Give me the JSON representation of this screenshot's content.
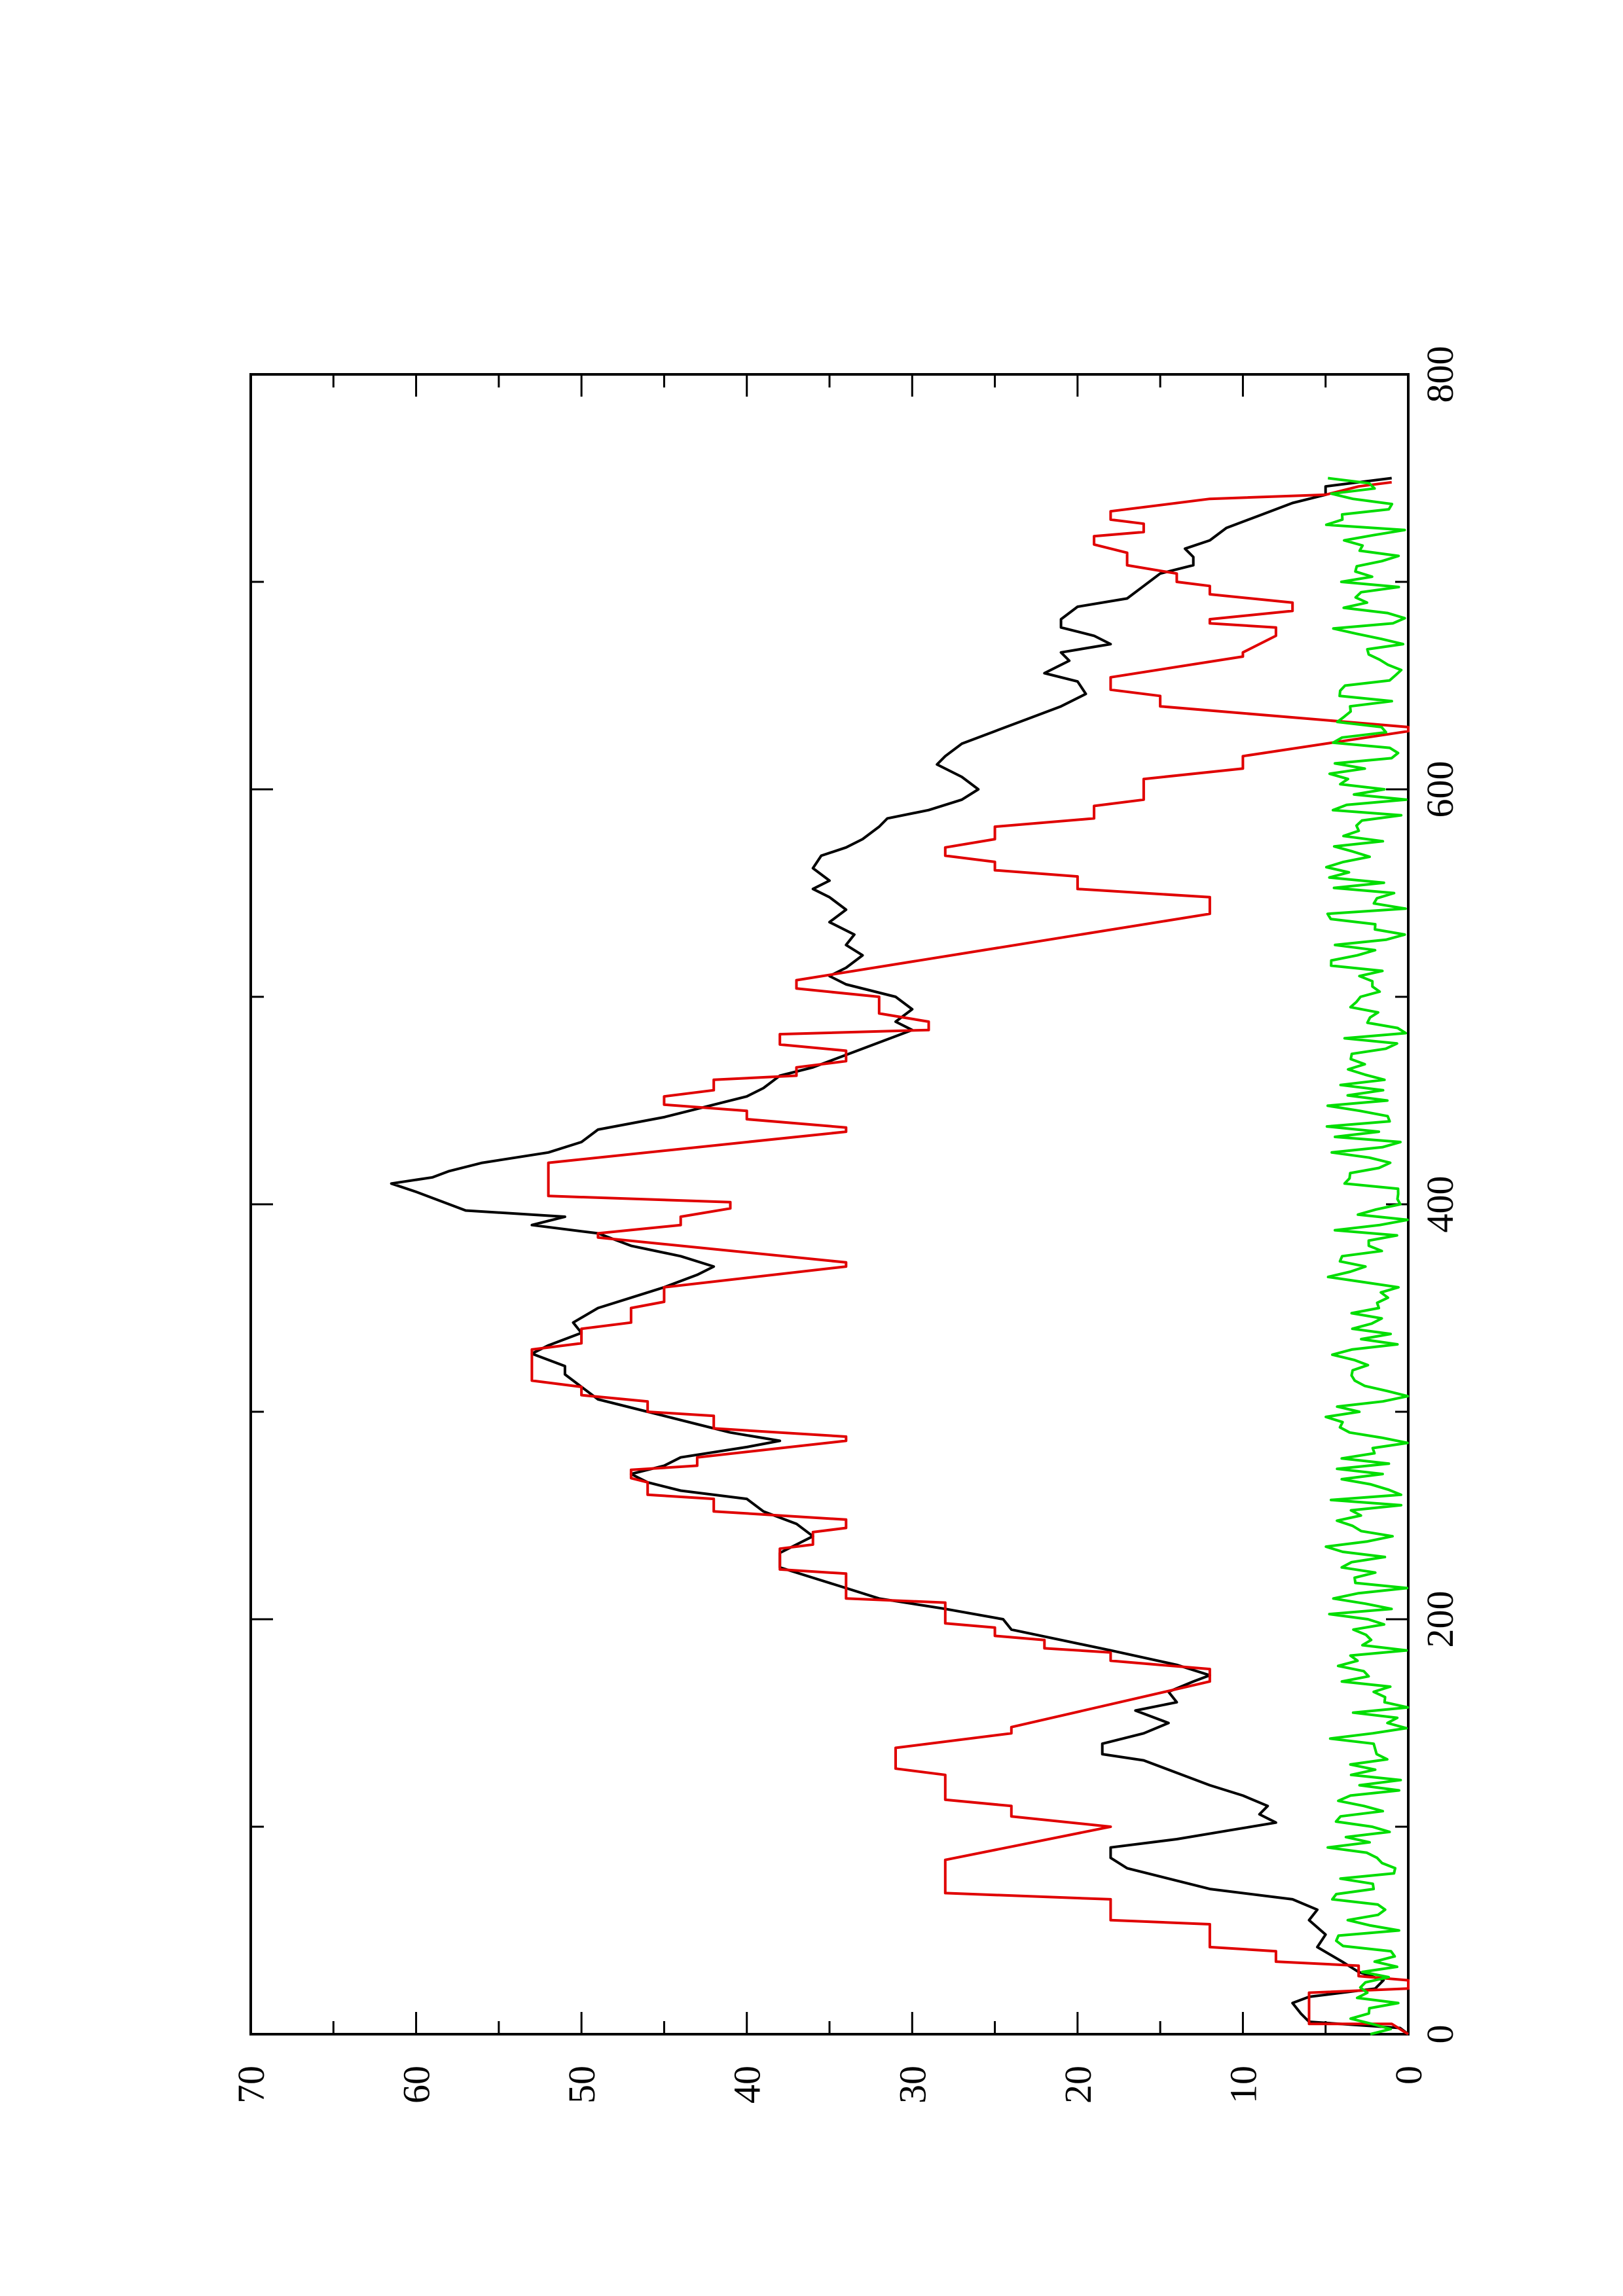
{
  "chart_data": {
    "type": "line",
    "title": "",
    "xlabel": "",
    "ylabel": "",
    "orientation": "rotated-90-ccw",
    "xlim": [
      0,
      800
    ],
    "ylim": [
      0,
      70
    ],
    "x_ticks": [
      "0",
      "200",
      "400",
      "600",
      "800"
    ],
    "y_ticks": [
      "0",
      "10",
      "20",
      "30",
      "40",
      "50",
      "60",
      "70"
    ],
    "grid": false,
    "legend": "none",
    "series": [
      {
        "color": "#000000",
        "style": "line",
        "points": [
          [
            0,
            0
          ],
          [
            3,
            0.5
          ],
          [
            6,
            6
          ],
          [
            10,
            6.5
          ],
          [
            15,
            7
          ],
          [
            18,
            6
          ],
          [
            22,
            2
          ],
          [
            26,
            1.5
          ],
          [
            30,
            3
          ],
          [
            35,
            4
          ],
          [
            42,
            5.5
          ],
          [
            48,
            5
          ],
          [
            55,
            6
          ],
          [
            60,
            5.5
          ],
          [
            65,
            7
          ],
          [
            70,
            12
          ],
          [
            76,
            15
          ],
          [
            80,
            17
          ],
          [
            85,
            18
          ],
          [
            90,
            18
          ],
          [
            94,
            14
          ],
          [
            98,
            11
          ],
          [
            102,
            8
          ],
          [
            106,
            9
          ],
          [
            110,
            8.5
          ],
          [
            115,
            10
          ],
          [
            120,
            12
          ],
          [
            126,
            14
          ],
          [
            132,
            16
          ],
          [
            135,
            18.5
          ],
          [
            140,
            18.5
          ],
          [
            145,
            16
          ],
          [
            150,
            14.5
          ],
          [
            156,
            16.5
          ],
          [
            160,
            14
          ],
          [
            165,
            14.5
          ],
          [
            170,
            13
          ],
          [
            173,
            12
          ],
          [
            178,
            14
          ],
          [
            185,
            18
          ],
          [
            190,
            21
          ],
          [
            195,
            24
          ],
          [
            200,
            24.5
          ],
          [
            205,
            28
          ],
          [
            210,
            32
          ],
          [
            215,
            34
          ],
          [
            220,
            36
          ],
          [
            225,
            38
          ],
          [
            232,
            38
          ],
          [
            240,
            36
          ],
          [
            246,
            37
          ],
          [
            252,
            39
          ],
          [
            258,
            40
          ],
          [
            262,
            44
          ],
          [
            266,
            46
          ],
          [
            270,
            47
          ],
          [
            274,
            45
          ],
          [
            278,
            44
          ],
          [
            283,
            40
          ],
          [
            286,
            38
          ],
          [
            290,
            41
          ],
          [
            294,
            43
          ],
          [
            300,
            46
          ],
          [
            306,
            49
          ],
          [
            312,
            50
          ],
          [
            318,
            51
          ],
          [
            322,
            51
          ],
          [
            328,
            53
          ],
          [
            332,
            52
          ],
          [
            338,
            50
          ],
          [
            343,
            50.5
          ],
          [
            350,
            49
          ],
          [
            355,
            47
          ],
          [
            360,
            45
          ],
          [
            366,
            43
          ],
          [
            370,
            42
          ],
          [
            375,
            44
          ],
          [
            380,
            47
          ],
          [
            386,
            49
          ],
          [
            390,
            53
          ],
          [
            394,
            51
          ],
          [
            397,
            57
          ],
          [
            400,
            58
          ],
          [
            406,
            60
          ],
          [
            410,
            61.5
          ],
          [
            413,
            59
          ],
          [
            416,
            58
          ],
          [
            420,
            56
          ],
          [
            425,
            52
          ],
          [
            430,
            50
          ],
          [
            436,
            49
          ],
          [
            442,
            45
          ],
          [
            446,
            43
          ],
          [
            452,
            40
          ],
          [
            456,
            39
          ],
          [
            462,
            38
          ],
          [
            466,
            36
          ],
          [
            472,
            34
          ],
          [
            478,
            32
          ],
          [
            484,
            30
          ],
          [
            488,
            31
          ],
          [
            494,
            30
          ],
          [
            500,
            31
          ],
          [
            506,
            34
          ],
          [
            510,
            35
          ],
          [
            514,
            34
          ],
          [
            520,
            33
          ],
          [
            525,
            34
          ],
          [
            530,
            33.5
          ],
          [
            536,
            35
          ],
          [
            542,
            34
          ],
          [
            548,
            35
          ],
          [
            552,
            36
          ],
          [
            556,
            35
          ],
          [
            562,
            36
          ],
          [
            568,
            35.5
          ],
          [
            572,
            34
          ],
          [
            576,
            33
          ],
          [
            582,
            32
          ],
          [
            586,
            31.5
          ],
          [
            590,
            29
          ],
          [
            595,
            27
          ],
          [
            600,
            26
          ],
          [
            606,
            27
          ],
          [
            612,
            28.5
          ],
          [
            616,
            28
          ],
          [
            622,
            27
          ],
          [
            628,
            25
          ],
          [
            634,
            23
          ],
          [
            640,
            21
          ],
          [
            646,
            19.5
          ],
          [
            652,
            20
          ],
          [
            656,
            22
          ],
          [
            662,
            20.5
          ],
          [
            666,
            21
          ],
          [
            670,
            18
          ],
          [
            674,
            19
          ],
          [
            678,
            21
          ],
          [
            682,
            21
          ],
          [
            688,
            20
          ],
          [
            692,
            17
          ],
          [
            698,
            16
          ],
          [
            704,
            15
          ],
          [
            708,
            13
          ],
          [
            712,
            13
          ],
          [
            716,
            13.5
          ],
          [
            720,
            12
          ],
          [
            726,
            11
          ],
          [
            732,
            9
          ],
          [
            738,
            7
          ],
          [
            742,
            5
          ],
          [
            746,
            5
          ],
          [
            750,
            1
          ]
        ]
      },
      {
        "color": "#e00000",
        "style": "line",
        "points": [
          [
            0,
            0
          ],
          [
            5,
            1
          ],
          [
            5,
            6
          ],
          [
            10,
            6
          ],
          [
            20,
            6
          ],
          [
            22,
            0
          ],
          [
            26,
            0
          ],
          [
            28,
            3
          ],
          [
            33,
            3
          ],
          [
            35,
            8
          ],
          [
            40,
            8
          ],
          [
            42,
            12
          ],
          [
            53,
            12
          ],
          [
            55,
            18
          ],
          [
            65,
            18
          ],
          [
            68,
            28
          ],
          [
            82,
            28
          ],
          [
            84,
            28
          ],
          [
            100,
            18
          ],
          [
            105,
            24
          ],
          [
            110,
            24
          ],
          [
            113,
            28
          ],
          [
            125,
            28
          ],
          [
            128,
            31
          ],
          [
            138,
            31
          ],
          [
            145,
            24
          ],
          [
            148,
            24
          ],
          [
            170,
            12
          ],
          [
            176,
            12
          ],
          [
            180,
            18
          ],
          [
            184,
            18
          ],
          [
            186,
            22
          ],
          [
            190,
            22
          ],
          [
            192,
            25
          ],
          [
            196,
            25
          ],
          [
            198,
            28
          ],
          [
            208,
            28
          ],
          [
            210,
            34
          ],
          [
            222,
            34
          ],
          [
            224,
            38
          ],
          [
            234,
            38
          ],
          [
            236,
            36
          ],
          [
            242,
            36
          ],
          [
            244,
            34
          ],
          [
            248,
            34
          ],
          [
            252,
            42
          ],
          [
            258,
            42
          ],
          [
            260,
            46
          ],
          [
            266,
            46
          ],
          [
            268,
            47
          ],
          [
            272,
            47
          ],
          [
            274,
            43
          ],
          [
            278,
            43
          ],
          [
            286,
            34
          ],
          [
            288,
            34
          ],
          [
            292,
            42
          ],
          [
            298,
            42
          ],
          [
            300,
            46
          ],
          [
            305,
            46
          ],
          [
            308,
            50
          ],
          [
            312,
            50
          ],
          [
            315,
            53
          ],
          [
            330,
            53
          ],
          [
            333,
            50
          ],
          [
            340,
            50
          ],
          [
            343,
            47
          ],
          [
            350,
            47
          ],
          [
            353,
            45
          ],
          [
            360,
            45
          ],
          [
            370,
            34
          ],
          [
            372,
            34
          ],
          [
            384,
            49
          ],
          [
            386,
            49
          ],
          [
            390,
            44
          ],
          [
            394,
            44
          ],
          [
            398,
            41
          ],
          [
            401,
            41
          ],
          [
            404,
            52
          ],
          [
            420,
            52
          ],
          [
            435,
            34
          ],
          [
            437,
            34
          ],
          [
            441,
            40
          ],
          [
            445,
            40
          ],
          [
            448,
            45
          ],
          [
            452,
            45
          ],
          [
            455,
            42
          ],
          [
            460,
            42
          ],
          [
            462,
            37
          ],
          [
            466,
            37
          ],
          [
            469,
            34
          ],
          [
            474,
            34
          ],
          [
            477,
            38
          ],
          [
            482,
            38
          ],
          [
            484,
            29
          ],
          [
            488,
            29
          ],
          [
            492,
            32
          ],
          [
            500,
            32
          ],
          [
            504,
            37
          ],
          [
            508,
            37
          ],
          [
            540,
            12
          ],
          [
            548,
            12
          ],
          [
            552,
            20
          ],
          [
            558,
            20
          ],
          [
            561,
            25
          ],
          [
            565,
            25
          ],
          [
            568,
            28
          ],
          [
            572,
            28
          ],
          [
            576,
            25
          ],
          [
            582,
            25
          ],
          [
            586,
            19
          ],
          [
            592,
            19
          ],
          [
            595,
            16
          ],
          [
            605,
            16
          ],
          [
            610,
            10
          ],
          [
            616,
            10
          ],
          [
            628,
            0
          ],
          [
            630,
            0
          ],
          [
            640,
            15
          ],
          [
            645,
            15
          ],
          [
            648,
            18
          ],
          [
            650,
            18
          ],
          [
            654,
            18
          ],
          [
            664,
            10
          ],
          [
            666,
            10
          ],
          [
            674,
            8
          ],
          [
            678,
            8
          ],
          [
            680,
            12
          ],
          [
            682,
            12
          ],
          [
            686,
            7
          ],
          [
            690,
            7
          ],
          [
            694,
            12
          ],
          [
            698,
            12
          ],
          [
            700,
            14
          ],
          [
            704,
            14
          ],
          [
            708,
            17
          ],
          [
            714,
            17
          ],
          [
            718,
            19
          ],
          [
            722,
            19
          ],
          [
            724,
            16
          ],
          [
            728,
            16
          ],
          [
            730,
            18
          ],
          [
            734,
            18
          ],
          [
            740,
            12
          ],
          [
            742,
            5
          ],
          [
            746,
            3
          ],
          [
            748,
            1
          ]
        ]
      },
      {
        "color": "#00dd00",
        "style": "line",
        "noise": true,
        "range": [
          0,
          5
        ],
        "x_extent": [
          0,
          750
        ]
      }
    ]
  }
}
